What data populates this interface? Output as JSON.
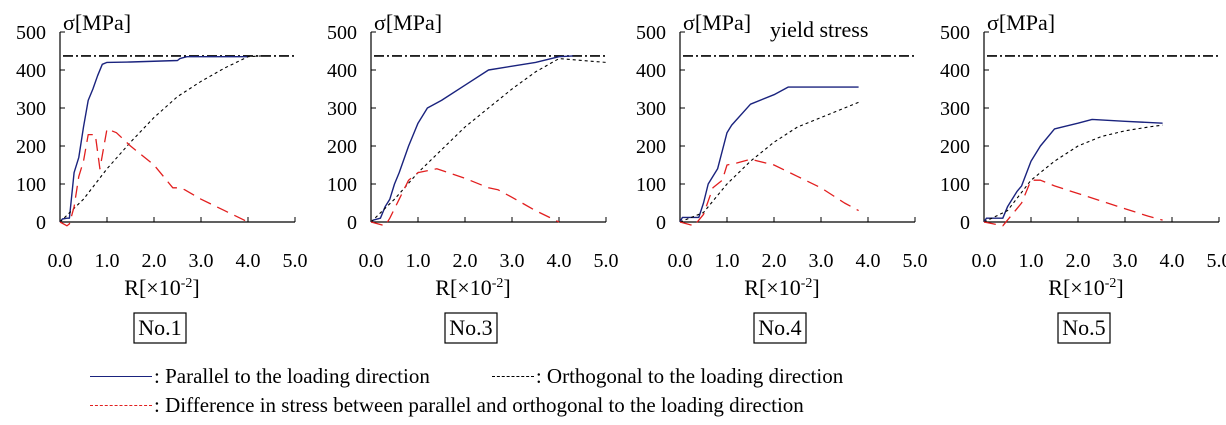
{
  "chart_data": [
    {
      "type": "line",
      "specimen_label": "No.1",
      "title": "",
      "ylabel": "σ[MPa]",
      "xlabel": "R[×10-2]",
      "xlim": [
        0,
        5
      ],
      "ylim": [
        0,
        500
      ],
      "x_ticks": [
        "0.0",
        "1.0",
        "2.0",
        "3.0",
        "4.0",
        "5.0"
      ],
      "y_ticks": [
        "0",
        "100",
        "200",
        "300",
        "400",
        "500"
      ],
      "yield_stress": 437,
      "yield_label": "",
      "series": [
        {
          "key": "parallel",
          "points": [
            [
              0,
              0
            ],
            [
              0.05,
              8
            ],
            [
              0.15,
              10
            ],
            [
              0.2,
              10
            ],
            [
              0.3,
              130
            ],
            [
              0.4,
              170
            ],
            [
              0.5,
              250
            ],
            [
              0.6,
              320
            ],
            [
              0.7,
              350
            ],
            [
              0.8,
              385
            ],
            [
              0.9,
              415
            ],
            [
              1.0,
              420
            ],
            [
              1.5,
              421
            ],
            [
              2.5,
              425
            ],
            [
              2.55,
              430
            ],
            [
              2.7,
              435
            ],
            [
              3.5,
              435
            ],
            [
              4.0,
              435
            ]
          ]
        },
        {
          "key": "orthogonal",
          "points": [
            [
              0,
              0
            ],
            [
              0.5,
              60
            ],
            [
              1.0,
              140
            ],
            [
              1.5,
              210
            ],
            [
              2.0,
              275
            ],
            [
              2.5,
              330
            ],
            [
              3.0,
              370
            ],
            [
              3.5,
              405
            ],
            [
              4.0,
              435
            ],
            [
              4.3,
              437
            ]
          ]
        },
        {
          "key": "difference",
          "points": [
            [
              0,
              0
            ],
            [
              0.15,
              -10
            ],
            [
              0.2,
              -5
            ],
            [
              0.3,
              40
            ],
            [
              0.4,
              120
            ],
            [
              0.5,
              160
            ],
            [
              0.6,
              230
            ],
            [
              0.75,
              230
            ],
            [
              0.85,
              140
            ],
            [
              1.0,
              245
            ],
            [
              1.2,
              235
            ],
            [
              1.5,
              200
            ],
            [
              2.0,
              150
            ],
            [
              2.4,
              90
            ],
            [
              2.55,
              90
            ],
            [
              2.65,
              85
            ],
            [
              3.0,
              60
            ],
            [
              3.5,
              30
            ],
            [
              4.0,
              0
            ]
          ]
        }
      ]
    },
    {
      "type": "line",
      "specimen_label": "No.3",
      "title": "",
      "ylabel": "σ[MPa]",
      "xlabel": "R[×10-2]",
      "xlim": [
        0,
        5
      ],
      "ylim": [
        0,
        500
      ],
      "x_ticks": [
        "0.0",
        "1.0",
        "2.0",
        "3.0",
        "4.0",
        "5.0"
      ],
      "y_ticks": [
        "0",
        "100",
        "200",
        "300",
        "400",
        "500"
      ],
      "yield_stress": 437,
      "yield_label": "",
      "series": [
        {
          "key": "parallel",
          "points": [
            [
              0,
              0
            ],
            [
              0.05,
              5
            ],
            [
              0.2,
              10
            ],
            [
              0.3,
              40
            ],
            [
              0.4,
              60
            ],
            [
              0.5,
              100
            ],
            [
              0.6,
              130
            ],
            [
              0.8,
              200
            ],
            [
              1.0,
              260
            ],
            [
              1.2,
              300
            ],
            [
              1.5,
              320
            ],
            [
              2.0,
              360
            ],
            [
              2.5,
              400
            ],
            [
              3.0,
              410
            ],
            [
              3.5,
              420
            ],
            [
              4.0,
              435
            ],
            [
              4.3,
              437
            ]
          ]
        },
        {
          "key": "orthogonal",
          "points": [
            [
              0,
              0
            ],
            [
              0.5,
              60
            ],
            [
              1.0,
              130
            ],
            [
              1.5,
              190
            ],
            [
              2.0,
              250
            ],
            [
              2.5,
              300
            ],
            [
              3.0,
              350
            ],
            [
              3.5,
              395
            ],
            [
              4.0,
              430
            ],
            [
              4.5,
              425
            ],
            [
              5.0,
              420
            ]
          ]
        },
        {
          "key": "difference",
          "points": [
            [
              0,
              0
            ],
            [
              0.3,
              -10
            ],
            [
              0.4,
              10
            ],
            [
              0.6,
              60
            ],
            [
              0.8,
              110
            ],
            [
              1.0,
              130
            ],
            [
              1.4,
              140
            ],
            [
              2.0,
              115
            ],
            [
              2.5,
              90
            ],
            [
              2.7,
              85
            ],
            [
              3.0,
              65
            ],
            [
              3.5,
              30
            ],
            [
              4.0,
              0
            ]
          ]
        }
      ]
    },
    {
      "type": "line",
      "specimen_label": "No.4",
      "title": "",
      "ylabel": "σ[MPa]",
      "xlabel": "R[×10-2]",
      "xlim": [
        0,
        5
      ],
      "ylim": [
        0,
        500
      ],
      "x_ticks": [
        "0.0",
        "1.0",
        "2.0",
        "3.0",
        "4.0",
        "5.0"
      ],
      "y_ticks": [
        "0",
        "100",
        "200",
        "300",
        "400",
        "500"
      ],
      "yield_stress": 437,
      "yield_label": "yield stress",
      "series": [
        {
          "key": "parallel",
          "points": [
            [
              0,
              0
            ],
            [
              0.05,
              12
            ],
            [
              0.4,
              12
            ],
            [
              0.5,
              50
            ],
            [
              0.6,
              100
            ],
            [
              0.7,
              120
            ],
            [
              0.8,
              140
            ],
            [
              1.0,
              235
            ],
            [
              1.1,
              255
            ],
            [
              1.5,
              310
            ],
            [
              2.0,
              335
            ],
            [
              2.3,
              355
            ],
            [
              3.0,
              355
            ],
            [
              3.8,
              355
            ]
          ]
        },
        {
          "key": "orthogonal",
          "points": [
            [
              0,
              0
            ],
            [
              0.5,
              25
            ],
            [
              1.0,
              100
            ],
            [
              1.5,
              160
            ],
            [
              2.0,
              210
            ],
            [
              2.5,
              250
            ],
            [
              3.0,
              275
            ],
            [
              3.5,
              300
            ],
            [
              3.8,
              315
            ]
          ]
        },
        {
          "key": "difference",
          "points": [
            [
              0,
              0
            ],
            [
              0.3,
              -10
            ],
            [
              0.5,
              20
            ],
            [
              0.7,
              90
            ],
            [
              0.9,
              110
            ],
            [
              1.0,
              150
            ],
            [
              1.2,
              155
            ],
            [
              1.5,
              165
            ],
            [
              2.0,
              150
            ],
            [
              2.5,
              120
            ],
            [
              3.0,
              90
            ],
            [
              3.5,
              50
            ],
            [
              3.8,
              30
            ]
          ]
        }
      ]
    },
    {
      "type": "line",
      "specimen_label": "No.5",
      "title": "",
      "ylabel": "σ[MPa]",
      "xlabel": "R[×10-2]",
      "xlim": [
        0,
        5
      ],
      "ylim": [
        0,
        500
      ],
      "x_ticks": [
        "0.0",
        "1.0",
        "2.0",
        "3.0",
        "4.0",
        "5.0"
      ],
      "y_ticks": [
        "0",
        "100",
        "200",
        "300",
        "400",
        "500"
      ],
      "yield_stress": 437,
      "yield_label": "",
      "series": [
        {
          "key": "parallel",
          "points": [
            [
              0,
              0
            ],
            [
              0.05,
              10
            ],
            [
              0.4,
              10
            ],
            [
              0.5,
              40
            ],
            [
              0.7,
              80
            ],
            [
              0.8,
              95
            ],
            [
              1.0,
              160
            ],
            [
              1.2,
              200
            ],
            [
              1.5,
              245
            ],
            [
              2.0,
              260
            ],
            [
              2.3,
              270
            ],
            [
              3.0,
              265
            ],
            [
              3.8,
              260
            ]
          ]
        },
        {
          "key": "orthogonal",
          "points": [
            [
              0,
              0
            ],
            [
              0.5,
              30
            ],
            [
              1.0,
              110
            ],
            [
              1.5,
              160
            ],
            [
              2.0,
              200
            ],
            [
              2.5,
              225
            ],
            [
              3.0,
              240
            ],
            [
              3.5,
              250
            ],
            [
              3.8,
              255
            ]
          ]
        },
        {
          "key": "difference",
          "points": [
            [
              0,
              0
            ],
            [
              0.2,
              -5
            ],
            [
              0.4,
              -10
            ],
            [
              0.6,
              20
            ],
            [
              0.8,
              50
            ],
            [
              1.0,
              110
            ],
            [
              1.2,
              110
            ],
            [
              1.5,
              95
            ],
            [
              2.0,
              75
            ],
            [
              2.5,
              55
            ],
            [
              3.0,
              35
            ],
            [
              3.5,
              15
            ],
            [
              3.8,
              5
            ]
          ]
        }
      ]
    }
  ],
  "legend": {
    "parallel": ": Parallel to the loading direction",
    "orthogonal": ": Orthogonal to the loading direction",
    "difference": ": Difference in stress between parallel and orthogonal to the loading direction"
  },
  "colors": {
    "parallel": "#1a237e",
    "orthogonal": "#000000",
    "difference": "#e21f1f",
    "yield": "#000000"
  }
}
